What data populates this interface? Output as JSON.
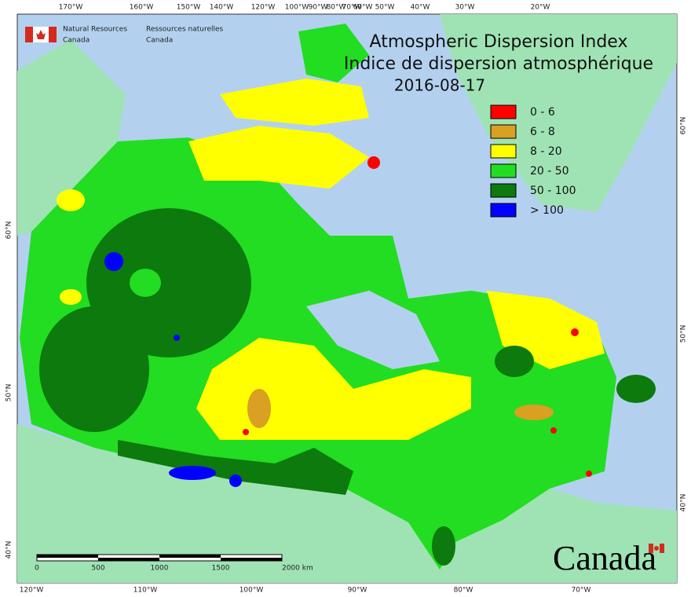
{
  "header": {
    "agency_en": [
      "Natural Resources",
      "Canada"
    ],
    "agency_fr": [
      "Ressources naturelles",
      "Canada"
    ]
  },
  "title": [
    "Atmospheric Dispersion Index",
    "Indice de dispersion atmosphérique"
  ],
  "date": "2016-08-17",
  "legend": [
    {
      "label": "0 - 6",
      "color": "#ff0000"
    },
    {
      "label": "6 - 8",
      "color": "#d9a021"
    },
    {
      "label": "8 - 20",
      "color": "#ffff00"
    },
    {
      "label": "20 - 50",
      "color": "#22dd22"
    },
    {
      "label": "50 - 100",
      "color": "#0c7a0c"
    },
    {
      "label": "> 100",
      "color": "#0000ff"
    }
  ],
  "top_longitudes": [
    "170°W",
    "160°W",
    "150°W",
    "140°W",
    "120°W",
    "100°W",
    "90°W",
    "80°W",
    "70°W",
    "60°W",
    "50°W",
    "40°W",
    "30°W",
    "20°W"
  ],
  "bottom_longitudes": [
    "120°W",
    "110°W",
    "100°W",
    "90°W",
    "80°W",
    "70°W"
  ],
  "left_latitudes": [
    "60°N",
    "50°N",
    "40°N"
  ],
  "right_latitudes": [
    "60°N",
    "50°N",
    "40°N"
  ],
  "scale_labels": [
    "0",
    "500",
    "1000",
    "1500",
    "2000 km"
  ],
  "wordmark": "Canada"
}
